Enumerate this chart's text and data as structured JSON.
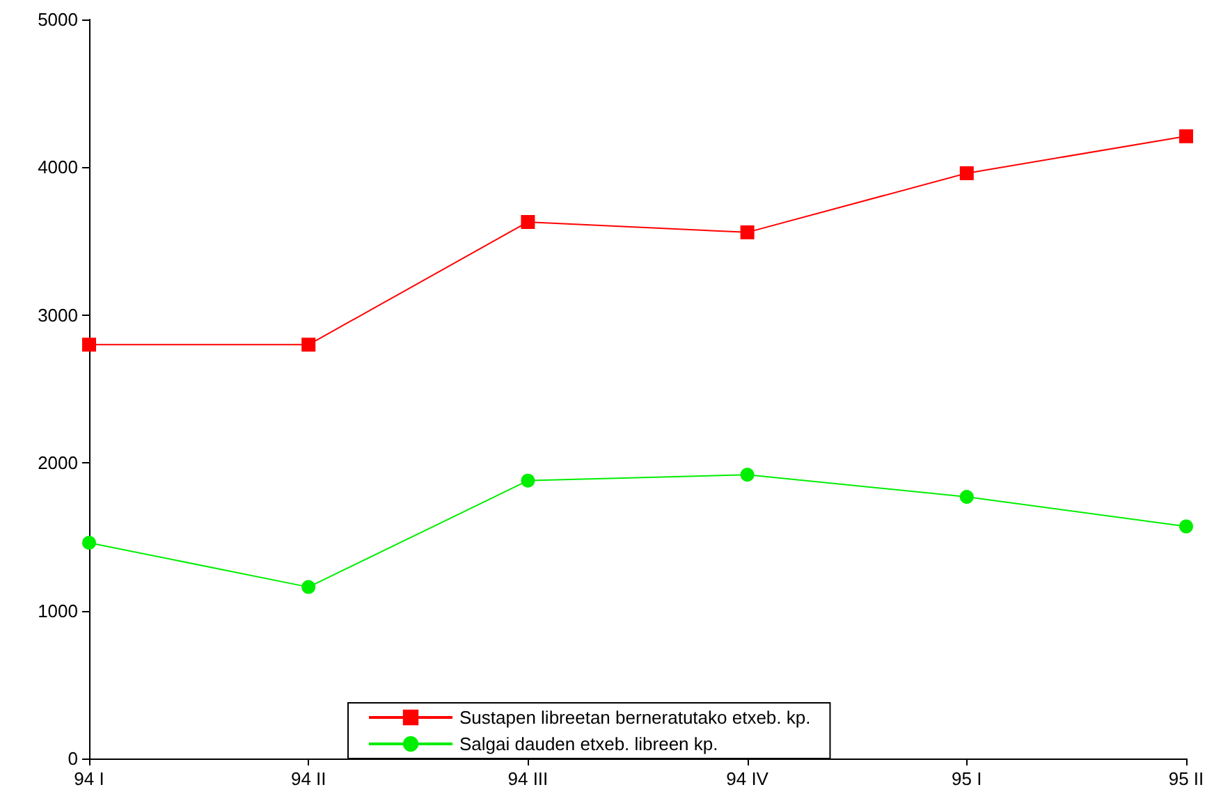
{
  "chart_data": {
    "type": "line",
    "categories": [
      "94 I",
      "94 II",
      "94 III",
      "94 IV",
      "95 I",
      "95 II"
    ],
    "series": [
      {
        "name": "Sustapen libreetan berneratutako etxeb. kp.",
        "color": "#ff0000",
        "marker": "square",
        "values": [
          2800,
          2800,
          3630,
          3560,
          3960,
          4210
        ]
      },
      {
        "name": "Salgai dauden etxeb. libreen kp.",
        "color": "#00ee00",
        "marker": "circle",
        "values": [
          1460,
          1160,
          1880,
          1920,
          1770,
          1570
        ]
      }
    ],
    "ylim": [
      0,
      5000
    ],
    "yticks": [
      0,
      1000,
      2000,
      3000,
      4000,
      5000
    ],
    "grid": false,
    "legend": "bottom",
    "line_style": "solid"
  }
}
